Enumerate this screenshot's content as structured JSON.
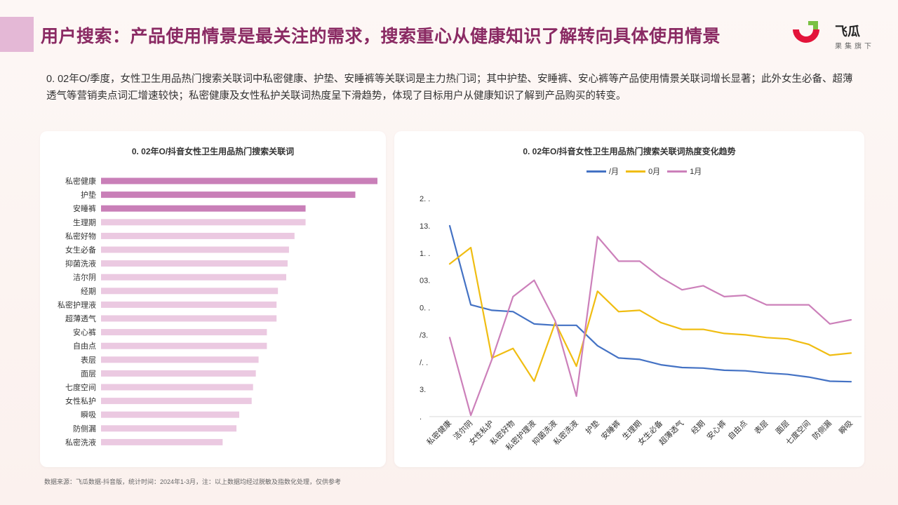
{
  "header": {
    "title": "用户搜索：产品使用情景是最关注的需求，搜索重心从健康知识了解转向具体使用情景",
    "logo_name": "飞瓜",
    "logo_sub": "果集旗下"
  },
  "summary": "0. 02年O/季度，女性卫生用品热门搜索关联词中私密健康、护垫、安睡裤等关联词是主力热门词；其中护垫、安睡裤、安心裤等产品使用情景关联词增长显著；此外女生必备、超薄透气等营销卖点词汇增速较快；私密健康及女性私护关联词热度呈下滑趋势，体现了目标用户从健康知识了解到产品购买的转变。",
  "footer": "数据来源：飞瓜数据-抖音版，统计时间：2024年1-3月，注：以上数据均经过脱敏及指数化处理，仅供参考",
  "colors": {
    "title": "#8a2a63",
    "bar_dark": "#c97fb8",
    "bar_light": "#ebc9e1",
    "series1": "#4472c4",
    "series2": "#f0bd12",
    "series3": "#cc80ba"
  },
  "chart_data": [
    {
      "type": "bar",
      "orientation": "horizontal",
      "title": "0. 02年O/抖音女性卫生用品热门搜索关联词",
      "categories": [
        "私密健康",
        "护垫",
        "安睡裤",
        "生理期",
        "私密好物",
        "女生必备",
        "抑菌洗液",
        "洁尔阴",
        "经期",
        "私密护理液",
        "超薄透气",
        "安心裤",
        "自由点",
        "表层",
        "面层",
        "七度空间",
        "女性私护",
        "瞬吸",
        "防侧漏",
        "私密洗液"
      ],
      "values": [
        100,
        92,
        74,
        74,
        70,
        68,
        67.5,
        67,
        64,
        63.5,
        63.5,
        60,
        60,
        57,
        56,
        55,
        54.5,
        50,
        49,
        44
      ],
      "highlight_count": 3,
      "xlim": [
        0,
        100
      ]
    },
    {
      "type": "line",
      "title": "0. 02年O/抖音女性卫生用品热门搜索关联词热度变化趋势",
      "categories": [
        "私密健康",
        "洁尔阴",
        "女性私护",
        "私密好物",
        "私密护理液",
        "抑菌洗液",
        "私密洗液",
        "护垫",
        "安睡裤",
        "生理期",
        "女生必备",
        "超薄透气",
        "经期",
        "安心裤",
        "自由点",
        "表层",
        "面层",
        "七度空间",
        "防侧漏",
        "瞬吸"
      ],
      "y_ticks": [
        ".",
        "3.",
        "/. .",
        "/3.",
        "0. .",
        "03.",
        "1. .",
        "13.",
        "2. ."
      ],
      "ylim": [
        0,
        8
      ],
      "legend_position": "top-center",
      "series": [
        {
          "name": "/月",
          "color": "#4472c4",
          "values": [
            7.0,
            4.1,
            3.9,
            3.85,
            3.4,
            3.35,
            3.35,
            2.6,
            2.15,
            2.1,
            1.9,
            1.8,
            1.78,
            1.7,
            1.68,
            1.6,
            1.55,
            1.45,
            1.3,
            1.28
          ]
        },
        {
          "name": "0月",
          "color": "#f0bd12",
          "values": [
            5.6,
            6.2,
            2.15,
            2.5,
            1.3,
            3.45,
            1.85,
            4.6,
            3.85,
            3.9,
            3.45,
            3.2,
            3.2,
            3.05,
            3.0,
            2.9,
            2.85,
            2.65,
            2.25,
            2.33
          ]
        },
        {
          "name": "1月",
          "color": "#cc80ba",
          "values": [
            2.9,
            0.05,
            2.1,
            4.4,
            5.0,
            3.5,
            0.75,
            6.6,
            5.7,
            5.7,
            5.1,
            4.65,
            4.8,
            4.4,
            4.45,
            4.1,
            4.1,
            4.1,
            3.4,
            3.55
          ]
        }
      ]
    }
  ]
}
